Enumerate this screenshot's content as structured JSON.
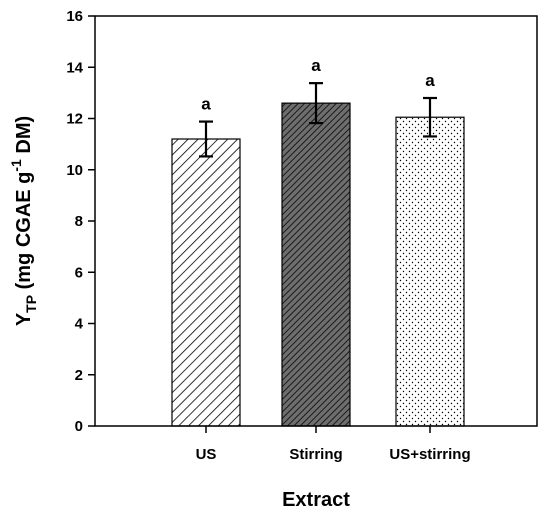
{
  "chart_data": {
    "type": "bar",
    "xlabel": "Extract",
    "ylabel": {
      "main": "Y",
      "subscript": "TP",
      "unit_open": " (mg CGAE g",
      "superscript": "-1",
      "unit_close": " DM)"
    },
    "categories": [
      "US",
      "Stirring",
      "US+stirring"
    ],
    "values": [
      11.2,
      12.6,
      12.05
    ],
    "errors": [
      0.68,
      0.78,
      0.75
    ],
    "significance_labels": [
      "a",
      "a",
      "a"
    ],
    "ylim": [
      0,
      16
    ],
    "yticks": [
      0,
      2,
      4,
      6,
      8,
      10,
      12,
      14,
      16
    ],
    "grid": false,
    "legend": "none",
    "bar_styles": [
      {
        "pattern": "sparse-diagonal-hatch",
        "fill": "#ffffff",
        "stroke": "#000000"
      },
      {
        "pattern": "dense-diagonal-hatch",
        "fill": "#6e6e6e",
        "stroke": "#000000"
      },
      {
        "pattern": "dots",
        "fill": "#ffffff",
        "stroke": "#000000"
      }
    ]
  }
}
